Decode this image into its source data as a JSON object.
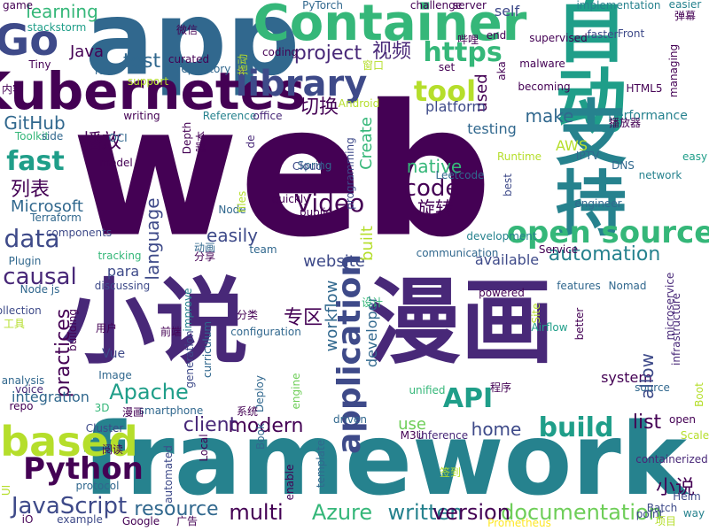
{
  "palette": {
    "purple": "#440154",
    "indigo": "#482878",
    "blue": "#3e4a89",
    "steel": "#31688e",
    "teal": "#26828e",
    "sea": "#1f9e89",
    "green": "#35b779",
    "lime": "#6ece58",
    "yellowgreen": "#b5de2b",
    "yellow": "#fde725"
  },
  "words": [
    {
      "text": "web",
      "color": "#440154"
    },
    {
      "text": "app",
      "color": "#31688e"
    },
    {
      "text": "自动",
      "color": "#1f9e89"
    },
    {
      "text": "支持",
      "color": "#26828e"
    },
    {
      "text": "小说",
      "color": "#482878"
    },
    {
      "text": "漫画",
      "color": "#482878"
    },
    {
      "text": "framework",
      "color": "#26828e"
    },
    {
      "text": "Kubernetes",
      "color": "#440154"
    },
    {
      "text": "Container",
      "color": "#35b779"
    },
    {
      "text": "Go",
      "color": "#3e4a89"
    },
    {
      "text": "library",
      "color": "#3e4a89"
    },
    {
      "text": "based",
      "color": "#b5de2b"
    },
    {
      "text": "Python",
      "color": "#440154"
    },
    {
      "text": "JavaScript",
      "color": "#3e4a89"
    },
    {
      "text": "open source",
      "color": "#35b779"
    },
    {
      "text": "application",
      "color": "#3e4a89"
    },
    {
      "text": "https",
      "color": "#35b779"
    },
    {
      "text": "tool",
      "color": "#b5de2b"
    },
    {
      "text": "project",
      "color": "#482878"
    },
    {
      "text": "test",
      "color": "#31688e"
    },
    {
      "text": "fast",
      "color": "#1f9e89"
    },
    {
      "text": "data",
      "color": "#3e4a89"
    },
    {
      "text": "Video",
      "color": "#440154"
    },
    {
      "text": "code",
      "color": "#440154"
    },
    {
      "text": "API",
      "color": "#1f9e89"
    },
    {
      "text": "build",
      "color": "#1f9e89"
    },
    {
      "text": "Azure",
      "color": "#35b779"
    },
    {
      "text": "documentation",
      "color": "#6ece58"
    },
    {
      "text": "multi",
      "color": "#440154"
    },
    {
      "text": "written",
      "color": "#26828e"
    },
    {
      "text": "version",
      "color": "#440154"
    },
    {
      "text": "resource",
      "color": "#31688e"
    },
    {
      "text": "modern",
      "color": "#440154"
    },
    {
      "text": "client",
      "color": "#482878"
    },
    {
      "text": "home",
      "color": "#3e4a89"
    },
    {
      "text": "list",
      "color": "#440154"
    },
    {
      "text": "use",
      "color": "#6ece58"
    },
    {
      "text": "Apache",
      "color": "#1f9e89"
    },
    {
      "text": "automation",
      "color": "#26828e"
    },
    {
      "text": "causal",
      "color": "#482878"
    },
    {
      "text": "language",
      "color": "#3e4a89"
    },
    {
      "text": "make",
      "color": "#31688e"
    },
    {
      "text": "native",
      "color": "#35b779"
    },
    {
      "text": "easily",
      "color": "#3e4a89"
    },
    {
      "text": "切换",
      "color": "#440154"
    },
    {
      "text": "播放",
      "color": "#440154"
    },
    {
      "text": "列表",
      "color": "#440154"
    },
    {
      "text": "视频",
      "color": "#482878"
    },
    {
      "text": "旋转",
      "color": "#440154"
    },
    {
      "text": "小说",
      "color": "#440154"
    },
    {
      "text": "专区",
      "color": "#440154"
    },
    {
      "text": "learning",
      "color": "#35b779"
    },
    {
      "text": "Java",
      "color": "#440154"
    },
    {
      "text": "GitHub",
      "color": "#31688e"
    },
    {
      "text": "Microsoft",
      "color": "#31688e"
    },
    {
      "text": "website",
      "color": "#3e4a89"
    },
    {
      "text": "workflow",
      "color": "#31688e"
    },
    {
      "text": "practices",
      "color": "#440154"
    },
    {
      "text": "integration",
      "color": "#31688e"
    },
    {
      "text": "system",
      "color": "#440154"
    },
    {
      "text": "allow",
      "color": "#3e4a89"
    },
    {
      "text": "used",
      "color": "#440154"
    },
    {
      "text": "Create",
      "color": "#35b779"
    },
    {
      "text": "built",
      "color": "#b5de2b"
    },
    {
      "text": "para",
      "color": "#3e4a89"
    },
    {
      "text": "available",
      "color": "#3e4a89"
    },
    {
      "text": "developer",
      "color": "#31688e"
    },
    {
      "text": "testing",
      "color": "#31688e"
    },
    {
      "text": "platform",
      "color": "#3e4a89"
    },
    {
      "text": "AWS",
      "color": "#b5de2b"
    },
    {
      "text": "self",
      "color": "#3e4a89"
    },
    {
      "text": "implementation",
      "color": "#26828e"
    },
    {
      "text": "supervised",
      "color": "#440154"
    },
    {
      "text": "malware",
      "color": "#440154"
    },
    {
      "text": "becoming",
      "color": "#440154"
    },
    {
      "text": "performance",
      "color": "#26828e"
    },
    {
      "text": "faster",
      "color": "#3e4a89"
    },
    {
      "text": "Front",
      "color": "#3e4a89"
    },
    {
      "text": "HTML5",
      "color": "#440154"
    },
    {
      "text": "managing",
      "color": "#440154"
    },
    {
      "text": "Plugin",
      "color": "#31688e"
    },
    {
      "text": "Node js",
      "color": "#31688e"
    },
    {
      "text": "collection",
      "color": "#3e4a89"
    },
    {
      "text": "Vue",
      "color": "#3e4a89"
    },
    {
      "text": "Image",
      "color": "#31688e"
    },
    {
      "text": "analysis",
      "color": "#31688e"
    },
    {
      "text": "voice",
      "color": "#482878"
    },
    {
      "text": "repo",
      "color": "#440154"
    },
    {
      "text": "Cluster",
      "color": "#3e4a89"
    },
    {
      "text": "iO",
      "color": "#440154"
    },
    {
      "text": "example",
      "color": "#3e4a89"
    },
    {
      "text": "Google",
      "color": "#440154"
    },
    {
      "text": "Local",
      "color": "#440154"
    },
    {
      "text": "Book",
      "color": "#31688e"
    },
    {
      "text": "Prometheus",
      "color": "#fde725"
    },
    {
      "text": "Batch",
      "color": "#3e4a89"
    },
    {
      "text": "Helm",
      "color": "#3e4a89"
    },
    {
      "text": "driven",
      "color": "#31688e"
    },
    {
      "text": "M3U",
      "color": "#440154"
    },
    {
      "text": "inference",
      "color": "#482878"
    },
    {
      "text": "containerized",
      "color": "#482878"
    },
    {
      "text": "Scale",
      "color": "#b5de2b"
    },
    {
      "text": "open",
      "color": "#440154"
    },
    {
      "text": "source",
      "color": "#31688e"
    },
    {
      "text": "unified",
      "color": "#35b779"
    },
    {
      "text": "better",
      "color": "#440154"
    },
    {
      "text": "microservice",
      "color": "#482878"
    },
    {
      "text": "infrastructure",
      "color": "#482878"
    },
    {
      "text": "Nomad",
      "color": "#31688e"
    },
    {
      "text": "features",
      "color": "#31688e"
    },
    {
      "text": "Airflow",
      "color": "#1f9e89"
    },
    {
      "text": "Site",
      "color": "#b5de2b"
    },
    {
      "text": "powered",
      "color": "#440154"
    },
    {
      "text": "engine",
      "color": "#6ece58"
    },
    {
      "text": "Deploy",
      "color": "#31688e"
    },
    {
      "text": "configuration",
      "color": "#31688e"
    },
    {
      "text": "curriculum",
      "color": "#31688e"
    },
    {
      "text": "generation",
      "color": "#3e4a89"
    },
    {
      "text": "improve",
      "color": "#26828e"
    },
    {
      "text": "discussing",
      "color": "#3e4a89"
    },
    {
      "text": "tracking",
      "color": "#35b779"
    },
    {
      "text": "building",
      "color": "#440154"
    },
    {
      "text": "communication",
      "color": "#31688e"
    },
    {
      "text": "development",
      "color": "#26828e"
    },
    {
      "text": "Service",
      "color": "#440154"
    },
    {
      "text": "team",
      "color": "#31688e"
    },
    {
      "text": "Node",
      "color": "#31688e"
    },
    {
      "text": "public",
      "color": "#440154"
    },
    {
      "text": "quickly",
      "color": "#440154"
    },
    {
      "text": "files",
      "color": "#b5de2b"
    },
    {
      "text": "Spring",
      "color": "#31688e"
    },
    {
      "text": "Cloud",
      "color": "#3e4a89"
    },
    {
      "text": "programming",
      "color": "#3e4a89"
    },
    {
      "text": "Leetcode",
      "color": "#31688e"
    },
    {
      "text": "IPTV",
      "color": "#31688e"
    },
    {
      "text": "Runtime",
      "color": "#b5de2b"
    },
    {
      "text": "network",
      "color": "#26828e"
    },
    {
      "text": "engineer",
      "color": "#31688e"
    },
    {
      "text": "best",
      "color": "#3e4a89"
    },
    {
      "text": "easy",
      "color": "#1f9e89"
    },
    {
      "text": "DNS",
      "color": "#31688e"
    },
    {
      "text": "writing",
      "color": "#440154"
    },
    {
      "text": "Reference",
      "color": "#26828e"
    },
    {
      "text": "office",
      "color": "#482878"
    },
    {
      "text": "Toolkit",
      "color": "#35b779"
    },
    {
      "text": "side",
      "color": "#31688e"
    },
    {
      "text": "OCI",
      "color": "#31688e"
    },
    {
      "text": "model",
      "color": "#440154"
    },
    {
      "text": "Depth",
      "color": "#440154"
    },
    {
      "text": "repository",
      "color": "#31688e"
    },
    {
      "text": "curated",
      "color": "#440154"
    },
    {
      "text": "support",
      "color": "#b5de2b"
    },
    {
      "text": "full",
      "color": "#31688e"
    },
    {
      "text": "Tiny",
      "color": "#440154"
    },
    {
      "text": "stackstorm",
      "color": "#1f9e89"
    },
    {
      "text": "PyTorch",
      "color": "#31688e"
    },
    {
      "text": "challenge",
      "color": "#440154"
    },
    {
      "text": "server",
      "color": "#440154"
    },
    {
      "text": "coding",
      "color": "#440154"
    },
    {
      "text": "end",
      "color": "#440154"
    },
    {
      "text": "aka",
      "color": "#440154"
    },
    {
      "text": "Android",
      "color": "#b5de2b"
    },
    {
      "text": "set",
      "color": "#440154"
    },
    {
      "text": "easier",
      "color": "#26828e"
    },
    {
      "text": "Terraform",
      "color": "#31688e"
    },
    {
      "text": "components",
      "color": "#3e4a89"
    },
    {
      "text": "3D",
      "color": "#35b779"
    },
    {
      "text": "UI",
      "color": "#b5de2b"
    },
    {
      "text": "smartphone",
      "color": "#31688e"
    },
    {
      "text": "automated",
      "color": "#3e4a89"
    },
    {
      "text": "protocol",
      "color": "#31688e"
    },
    {
      "text": "point",
      "color": "#3e4a89"
    },
    {
      "text": "way",
      "color": "#26828e"
    },
    {
      "text": "Boot",
      "color": "#b5de2b"
    },
    {
      "text": "template",
      "color": "#31688e"
    },
    {
      "text": "enable",
      "color": "#440154"
    },
    {
      "text": "de",
      "color": "#482878"
    },
    {
      "text": "game",
      "color": "#440154"
    },
    {
      "text": "内容",
      "color": "#440154"
    },
    {
      "text": "微信",
      "color": "#440154"
    },
    {
      "text": "哔哩",
      "color": "#440154"
    },
    {
      "text": "窗口",
      "color": "#b5de2b"
    },
    {
      "text": "弹幕",
      "color": "#440154"
    },
    {
      "text": "播放器",
      "color": "#440154"
    },
    {
      "text": "脚本",
      "color": "#440154"
    },
    {
      "text": "动画",
      "color": "#31688e"
    },
    {
      "text": "分享",
      "color": "#440154"
    },
    {
      "text": "分类",
      "color": "#440154"
    },
    {
      "text": "前端",
      "color": "#440154"
    },
    {
      "text": "用户",
      "color": "#440154"
    },
    {
      "text": "工具",
      "color": "#b5de2b"
    },
    {
      "text": "设计",
      "color": "#35b779"
    },
    {
      "text": "系统",
      "color": "#440154"
    },
    {
      "text": "漫画",
      "color": "#440154"
    },
    {
      "text": "程序",
      "color": "#440154"
    },
    {
      "text": "签到",
      "color": "#b5de2b"
    },
    {
      "text": "项目",
      "color": "#b5de2b"
    },
    {
      "text": "广告",
      "color": "#440154"
    },
    {
      "text": "阅读",
      "color": "#440154"
    },
    {
      "text": "拖动",
      "color": "#b5de2b"
    },
    {
      "text": "安卓",
      "color": "#b5de2b"
    }
  ]
}
